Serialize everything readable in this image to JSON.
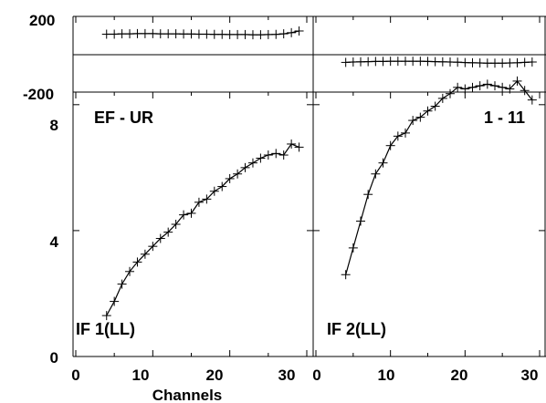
{
  "chart_data": [
    {
      "type": "line",
      "title": "",
      "xlabel": "",
      "ylabel": "",
      "xlim": [
        0,
        30
      ],
      "ylim": [
        -200,
        200
      ],
      "yticks": [
        "200",
        "-200"
      ],
      "panel_label": "",
      "series": [
        {
          "x": [
            4,
            5,
            6,
            7,
            8,
            9,
            10,
            11,
            12,
            13,
            14,
            15,
            16,
            17,
            18,
            19,
            20,
            21,
            22,
            23,
            24,
            25,
            26,
            27,
            28,
            29
          ],
          "values": [
            106,
            106,
            108,
            108,
            109,
            109,
            109,
            108,
            108,
            108,
            107,
            107,
            106,
            106,
            105,
            105,
            104,
            104,
            104,
            103,
            103,
            104,
            105,
            108,
            114,
            123
          ]
        }
      ]
    },
    {
      "type": "line",
      "title": "",
      "xlabel": "",
      "ylabel": "",
      "xlim": [
        0,
        30
      ],
      "ylim": [
        -200,
        200
      ],
      "panel_label": "",
      "series": [
        {
          "x": [
            4,
            5,
            6,
            7,
            8,
            9,
            10,
            11,
            12,
            13,
            14,
            15,
            16,
            17,
            18,
            19,
            20,
            21,
            22,
            23,
            24,
            25,
            26,
            27,
            28,
            29
          ],
          "values": [
            -43,
            -41,
            -40,
            -39,
            -38,
            -38,
            -37,
            -37,
            -37,
            -37,
            -37,
            -38,
            -39,
            -40,
            -41,
            -42,
            -44,
            -45,
            -46,
            -47,
            -47,
            -47,
            -46,
            -45,
            -43,
            -41
          ]
        }
      ]
    },
    {
      "type": "line",
      "title": "",
      "xlabel": "Channels",
      "ylabel": "",
      "xlim": [
        0,
        30
      ],
      "ylim": [
        0,
        8.4
      ],
      "xticks": [
        "0",
        "10",
        "20",
        "30"
      ],
      "yticks": [
        "0",
        "4",
        "8"
      ],
      "panel_label": "IF 1(LL)",
      "corner_label": "EF - UR",
      "series": [
        {
          "x": [
            4,
            5,
            6,
            7,
            8,
            9,
            10,
            11,
            12,
            13,
            14,
            15,
            16,
            17,
            18,
            19,
            20,
            21,
            22,
            23,
            24,
            25,
            26,
            27,
            28,
            29
          ],
          "values": [
            1.3,
            1.75,
            2.3,
            2.7,
            3.0,
            3.25,
            3.5,
            3.75,
            3.95,
            4.2,
            4.5,
            4.55,
            4.9,
            5.0,
            5.25,
            5.4,
            5.65,
            5.8,
            6.0,
            6.15,
            6.3,
            6.4,
            6.45,
            6.4,
            6.75,
            6.65
          ]
        }
      ]
    },
    {
      "type": "line",
      "title": "",
      "xlabel": "",
      "ylabel": "",
      "xlim": [
        0,
        30
      ],
      "ylim": [
        0,
        8.4
      ],
      "xticks": [
        "0",
        "10",
        "20",
        "30"
      ],
      "panel_label": "IF 2(LL)",
      "corner_label": "1 - 11",
      "series": [
        {
          "x": [
            4,
            5,
            6,
            7,
            8,
            9,
            10,
            11,
            12,
            13,
            14,
            15,
            16,
            17,
            18,
            19,
            20,
            21,
            22,
            23,
            24,
            25,
            26,
            27,
            28,
            29
          ],
          "values": [
            2.6,
            3.45,
            4.3,
            5.15,
            5.8,
            6.15,
            6.7,
            7.0,
            7.1,
            7.5,
            7.6,
            7.8,
            7.95,
            8.2,
            8.35,
            8.55,
            8.5,
            8.55,
            8.6,
            8.65,
            8.6,
            8.55,
            8.5,
            8.75,
            8.45,
            8.15
          ]
        }
      ]
    }
  ]
}
